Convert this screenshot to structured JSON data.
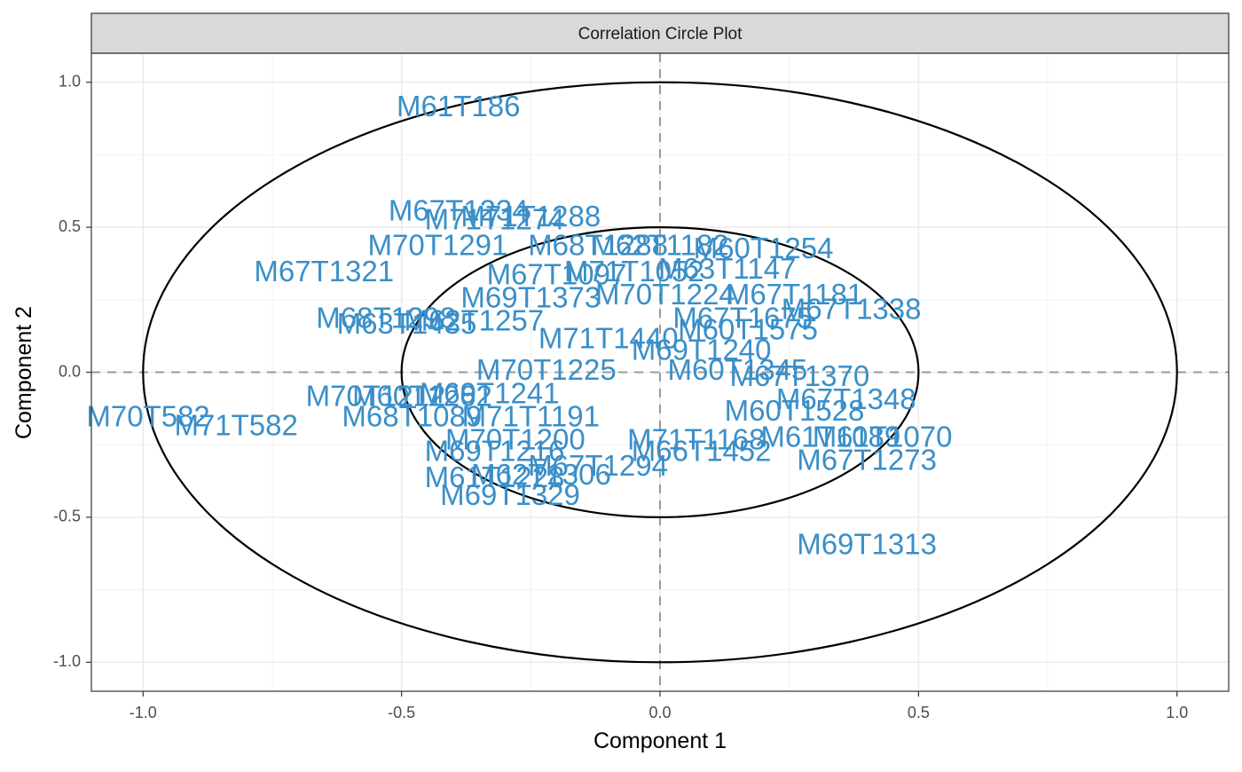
{
  "chart_data": {
    "type": "scatter",
    "title": "Correlation Circle Plot",
    "xlabel": "Component  1",
    "ylabel": "Component  2",
    "xlim": [
      -1.1,
      1.1
    ],
    "ylim": [
      -1.1,
      1.1
    ],
    "x_ticks": [
      -1.0,
      -0.5,
      0.0,
      0.5,
      1.0
    ],
    "y_ticks": [
      -1.0,
      -0.5,
      0.0,
      0.5,
      1.0
    ],
    "x_tick_labels": [
      "-1.0",
      "-0.5",
      "0.0",
      "0.5",
      "1.0"
    ],
    "y_tick_labels": [
      "-1.0",
      "-0.5",
      "0.0",
      "0.5",
      "1.0"
    ],
    "grid": true,
    "circles": [
      0.5,
      1.0
    ],
    "label_color": "#3A8FC9",
    "points": [
      {
        "label": "M61T186",
        "x": -0.39,
        "y": 0.91
      },
      {
        "label": "M67T1234",
        "x": -0.39,
        "y": 0.55
      },
      {
        "label": "M71T1288",
        "x": -0.25,
        "y": 0.53
      },
      {
        "label": "M71T1274",
        "x": -0.32,
        "y": 0.52
      },
      {
        "label": "M70T1291",
        "x": -0.43,
        "y": 0.43
      },
      {
        "label": "M68T1288",
        "x": -0.12,
        "y": 0.43
      },
      {
        "label": "M62T1182",
        "x": 0.0,
        "y": 0.43
      },
      {
        "label": "M60T1254",
        "x": 0.2,
        "y": 0.42
      },
      {
        "label": "M67T1321",
        "x": -0.65,
        "y": 0.34
      },
      {
        "label": "M67T1097",
        "x": -0.2,
        "y": 0.33
      },
      {
        "label": "M71T1052",
        "x": -0.05,
        "y": 0.34
      },
      {
        "label": "M63T1147",
        "x": 0.13,
        "y": 0.35
      },
      {
        "label": "M69T1373",
        "x": -0.25,
        "y": 0.25
      },
      {
        "label": "M70T1224",
        "x": 0.01,
        "y": 0.26
      },
      {
        "label": "M67T1181",
        "x": 0.26,
        "y": 0.26
      },
      {
        "label": "M67T1338",
        "x": 0.37,
        "y": 0.21
      },
      {
        "label": "M68T1298",
        "x": -0.53,
        "y": 0.18
      },
      {
        "label": "M62T1257",
        "x": -0.36,
        "y": 0.17
      },
      {
        "label": "M63T1435",
        "x": -0.49,
        "y": 0.16
      },
      {
        "label": "M67T1675",
        "x": 0.16,
        "y": 0.18
      },
      {
        "label": "M60T1575",
        "x": 0.17,
        "y": 0.14
      },
      {
        "label": "M71T1440",
        "x": -0.1,
        "y": 0.11
      },
      {
        "label": "M69T1240",
        "x": 0.08,
        "y": 0.07
      },
      {
        "label": "M70T1225",
        "x": -0.22,
        "y": 0.0
      },
      {
        "label": "M60T1345",
        "x": 0.15,
        "y": 0.0
      },
      {
        "label": "M67T1370",
        "x": 0.27,
        "y": -0.02
      },
      {
        "label": "M70T1212",
        "x": -0.55,
        "y": -0.09
      },
      {
        "label": "M60T1262",
        "x": -0.46,
        "y": -0.09
      },
      {
        "label": "M69T1241",
        "x": -0.33,
        "y": -0.08
      },
      {
        "label": "M67T1348",
        "x": 0.36,
        "y": -0.1
      },
      {
        "label": "M60T1528",
        "x": 0.26,
        "y": -0.14
      },
      {
        "label": "M70T582",
        "x": -0.99,
        "y": -0.16
      },
      {
        "label": "M71T582",
        "x": -0.82,
        "y": -0.19
      },
      {
        "label": "M68T1089",
        "x": -0.48,
        "y": -0.16
      },
      {
        "label": "M71T1191",
        "x": -0.25,
        "y": -0.16
      },
      {
        "label": "M69T1216",
        "x": -0.32,
        "y": -0.28
      },
      {
        "label": "M70T1200",
        "x": -0.28,
        "y": -0.24
      },
      {
        "label": "M71T1168",
        "x": 0.07,
        "y": -0.24
      },
      {
        "label": "M61T1089",
        "x": 0.33,
        "y": -0.23
      },
      {
        "label": "M61T1070",
        "x": 0.43,
        "y": -0.23
      },
      {
        "label": "M66T1452",
        "x": 0.08,
        "y": -0.28
      },
      {
        "label": "M67T1273",
        "x": 0.4,
        "y": -0.31
      },
      {
        "label": "M67T1294",
        "x": -0.12,
        "y": -0.33
      },
      {
        "label": "M62T1306",
        "x": -0.23,
        "y": -0.36
      },
      {
        "label": "M61T1228",
        "x": -0.32,
        "y": -0.37
      },
      {
        "label": "M69T1329",
        "x": -0.29,
        "y": -0.43
      },
      {
        "label": "M69T1313",
        "x": 0.4,
        "y": -0.6
      }
    ]
  }
}
